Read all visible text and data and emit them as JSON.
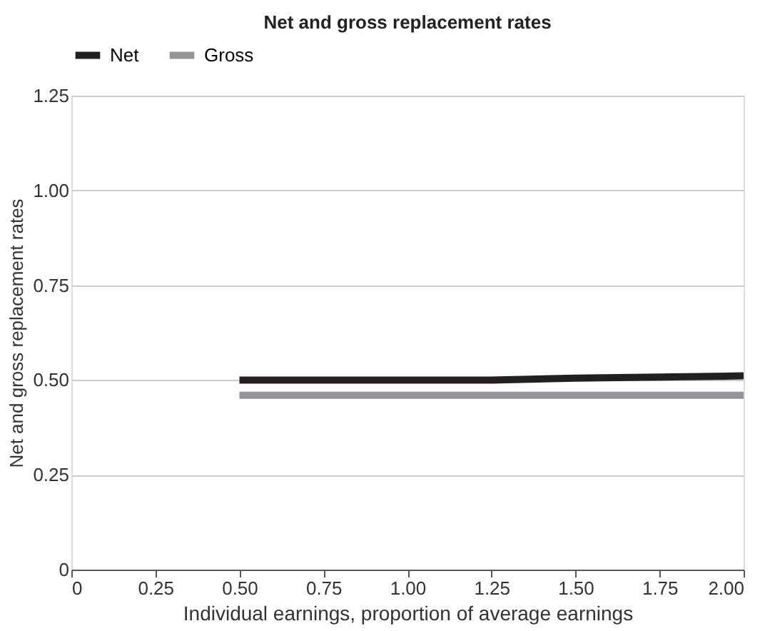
{
  "chart_data": {
    "type": "line",
    "title": "Net and gross replacement rates",
    "xlabel": "Individual earnings, proportion of average earnings",
    "ylabel": "Net and gross replacement rates",
    "x": [
      0.5,
      0.75,
      1.0,
      1.25,
      1.5,
      1.75,
      2.0
    ],
    "series": [
      {
        "name": "Net",
        "color": "#231f20",
        "values": [
          0.5,
          0.5,
          0.5,
          0.5,
          0.505,
          0.508,
          0.511
        ]
      },
      {
        "name": "Gross",
        "color": "#939598",
        "values": [
          0.46,
          0.46,
          0.46,
          0.46,
          0.46,
          0.46,
          0.46
        ]
      }
    ],
    "xlim": [
      0,
      2.0
    ],
    "xticks": [
      0,
      0.25,
      {
        "value": 0.5,
        "label": "0.50"
      },
      0.75,
      {
        "value": 1.0,
        "label": "1.00"
      },
      1.25,
      {
        "value": 1.5,
        "label": "1.50"
      },
      1.75,
      {
        "value": 2.0,
        "label": "2.00"
      }
    ],
    "ylim": [
      0,
      1.25
    ],
    "yticks": [
      0,
      0.25,
      {
        "value": 0.5,
        "label": "0.50"
      },
      0.75,
      {
        "value": 1.0,
        "label": "1.00"
      },
      1.25
    ],
    "grid": "y",
    "legend": "top",
    "marker": "none",
    "line_style": "solid"
  }
}
